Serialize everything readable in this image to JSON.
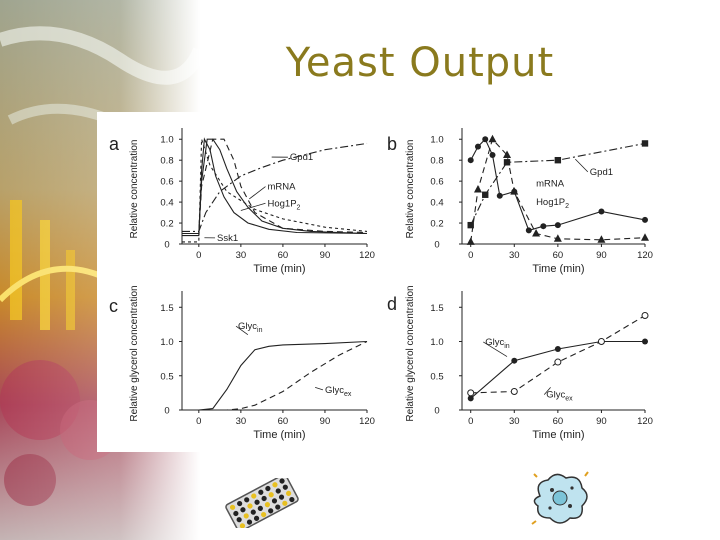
{
  "slide": {
    "title": "Yeast Output"
  },
  "colors": {
    "title": "#8a7a1e",
    "line": "#222222"
  },
  "decor": {
    "left_photo": "abstract-photo-strip",
    "plate_icon": "microplate-icon",
    "microbe_icon": "microbe-icon"
  },
  "chart_data": [
    {
      "panel": "a",
      "type": "line",
      "xticks": [
        "0",
        "30",
        "60",
        "90",
        "120"
      ],
      "xlim": [
        -12,
        120
      ],
      "yticks": [
        "0",
        "0.2",
        "0.4",
        "0.6",
        "0.8",
        "1.0"
      ],
      "ylim": [
        0,
        1.05
      ],
      "xlabel": "Time (min)",
      "ylabel": "Relative concentration",
      "series": [
        {
          "name": "Gpd1",
          "dash": "8,3,2,3",
          "x": [
            -12,
            0,
            5,
            15,
            30,
            45,
            60,
            75,
            90,
            105,
            120
          ],
          "y": [
            0.12,
            0.12,
            0.3,
            0.5,
            0.65,
            0.73,
            0.8,
            0.85,
            0.9,
            0.93,
            0.96
          ]
        },
        {
          "name": "mRNA",
          "dash": "",
          "x": [
            -12,
            0,
            2,
            6,
            10,
            15,
            20,
            27,
            35,
            45,
            60,
            80,
            100,
            120
          ],
          "y": [
            0.1,
            0.1,
            0.6,
            1.0,
            1.0,
            0.9,
            0.72,
            0.5,
            0.35,
            0.22,
            0.15,
            0.12,
            0.11,
            0.1
          ]
        },
        {
          "name": "Hog1P2",
          "dash": "",
          "x": [
            -12,
            0,
            2,
            4,
            8,
            12,
            18,
            25,
            35,
            50,
            70,
            120
          ],
          "y": [
            0.08,
            0.08,
            0.7,
            1.0,
            0.9,
            0.65,
            0.45,
            0.3,
            0.2,
            0.14,
            0.11,
            0.1
          ]
        },
        {
          "name": "",
          "dash": "6,4",
          "x": [
            -12,
            0,
            2,
            10,
            18,
            25,
            30,
            40,
            60,
            90,
            120
          ],
          "y": [
            0.1,
            0.1,
            0.55,
            1.0,
            1.0,
            0.8,
            0.55,
            0.3,
            0.15,
            0.12,
            0.11
          ]
        },
        {
          "name": "Ssk1",
          "dash": "3,3",
          "x": [
            -12,
            0,
            2,
            8,
            20,
            40,
            60,
            90,
            120
          ],
          "y": [
            0.02,
            0.02,
            1.0,
            0.75,
            0.5,
            0.33,
            0.24,
            0.16,
            0.12
          ]
        }
      ],
      "labels": [
        {
          "text": "Gpd1",
          "x": 65,
          "y": 0.8,
          "lx": 52,
          "ly": 0.83
        },
        {
          "text": "mRNA",
          "x": 49,
          "y": 0.52,
          "lx": 36,
          "ly": 0.43
        },
        {
          "text": "Hog1P",
          "sub": "2",
          "x": 49,
          "y": 0.36,
          "lx": 30,
          "ly": 0.32
        },
        {
          "text": "Ssk1",
          "x": 13,
          "y": 0.03,
          "lx": 4,
          "ly": 0.06
        }
      ]
    },
    {
      "panel": "b",
      "type": "line",
      "xticks": [
        "0",
        "30",
        "60",
        "90",
        "120"
      ],
      "xlim": [
        -6,
        120
      ],
      "yticks": [
        "0",
        "0.2",
        "0.4",
        "0.6",
        "0.8",
        "1.0"
      ],
      "ylim": [
        0,
        1.05
      ],
      "xlabel": "Time (min)",
      "ylabel": "Relative concentration",
      "series": [
        {
          "name": "Gpd1",
          "marker": "square",
          "dash": "8,3,2,3",
          "x": [
            0,
            10,
            25,
            60,
            120
          ],
          "y": [
            0.18,
            0.47,
            0.78,
            0.8,
            0.96
          ]
        },
        {
          "name": "mRNA",
          "marker": "circle",
          "dash": "",
          "x": [
            0,
            5,
            10,
            15,
            20,
            30,
            40,
            50,
            60,
            90,
            120
          ],
          "y": [
            0.8,
            0.93,
            1.0,
            0.85,
            0.46,
            0.5,
            0.13,
            0.17,
            0.18,
            0.31,
            0.23
          ]
        },
        {
          "name": "Hog1P2",
          "marker": "triangle",
          "dash": "6,4",
          "x": [
            0,
            5,
            15,
            25,
            30,
            45,
            60,
            90,
            120
          ],
          "y": [
            0.02,
            0.52,
            1.0,
            0.85,
            0.5,
            0.1,
            0.05,
            0.04,
            0.06
          ]
        }
      ],
      "labels": [
        {
          "text": "Gpd1",
          "x": 82,
          "y": 0.66,
          "lx": 72,
          "ly": 0.81
        },
        {
          "text": "mRNA",
          "x": 45,
          "y": 0.55
        },
        {
          "text": "Hog1P",
          "sub": "2",
          "x": 45,
          "y": 0.37
        }
      ]
    },
    {
      "panel": "c",
      "type": "line",
      "xticks": [
        "0",
        "30",
        "60",
        "90",
        "120"
      ],
      "xlim": [
        -12,
        120
      ],
      "yticks": [
        "0",
        "0.5",
        "1.0",
        "1.5"
      ],
      "ylim": [
        0,
        1.65
      ],
      "xlabel": "Time (min)",
      "ylabel": "Relative glycerol concentration",
      "series": [
        {
          "name": "Glycin",
          "dash": "",
          "x": [
            -12,
            0,
            10,
            20,
            30,
            40,
            50,
            60,
            90,
            120
          ],
          "y": [
            0,
            0,
            0.02,
            0.3,
            0.65,
            0.88,
            0.93,
            0.95,
            0.97,
            1.0
          ]
        },
        {
          "name": "Glycex",
          "dash": "6,4",
          "x": [
            -12,
            0,
            20,
            30,
            40,
            60,
            80,
            100,
            120
          ],
          "y": [
            0,
            0,
            0,
            0.02,
            0.07,
            0.27,
            0.55,
            0.8,
            1.0
          ]
        }
      ],
      "labels": [
        {
          "text": "Glyc",
          "sub": "in",
          "x": 28,
          "y": 1.18,
          "lx": 35,
          "ly": 1.1
        },
        {
          "text": "Glyc",
          "sub": "ex",
          "x": 90,
          "y": 0.25,
          "lx": 83,
          "ly": 0.33
        }
      ]
    },
    {
      "panel": "d",
      "type": "line",
      "xticks": [
        "0",
        "30",
        "60",
        "90",
        "120"
      ],
      "xlim": [
        -6,
        120
      ],
      "yticks": [
        "0",
        "0.5",
        "1.0",
        "1.5"
      ],
      "ylim": [
        0,
        1.65
      ],
      "xlabel": "Time (min)",
      "ylabel": "Relative glycerol concentration",
      "series": [
        {
          "name": "Glycin",
          "marker": "circle",
          "dash": "",
          "x": [
            0,
            30,
            60,
            90,
            120
          ],
          "y": [
            0.17,
            0.72,
            0.89,
            1.0,
            1.0
          ]
        },
        {
          "name": "Glycex",
          "marker": "open-circle",
          "dash": "6,4",
          "x": [
            0,
            30,
            60,
            90,
            120
          ],
          "y": [
            0.25,
            0.27,
            0.7,
            1.0,
            1.38
          ]
        }
      ],
      "labels": [
        {
          "text": "Glyc",
          "sub": "in",
          "x": 10,
          "y": 0.95,
          "lx": 25,
          "ly": 0.78
        },
        {
          "text": "Glyc",
          "sub": "ex",
          "x": 52,
          "y": 0.18,
          "lx": 55,
          "ly": 0.33
        }
      ]
    }
  ]
}
